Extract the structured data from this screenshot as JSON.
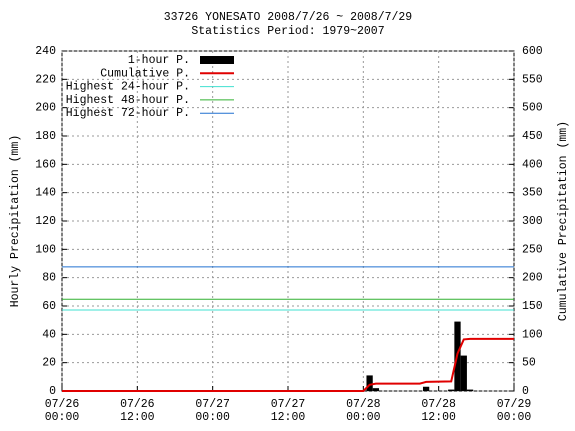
{
  "chart_data": {
    "type": "bar",
    "title": "33726 YONESATO  2008/7/26 ~ 2008/7/29",
    "subtitle": "Statistics Period: 1979~2007",
    "y_label": "Hourly Precipitation (mm)",
    "y2_label": "Cumulative Precipitation (mm)",
    "xlim": [
      0,
      72
    ],
    "xticks": [
      {
        "value": 0,
        "label": "07/26\n00:00"
      },
      {
        "value": 12,
        "label": "07/26\n12:00"
      },
      {
        "value": 24,
        "label": "07/27\n00:00"
      },
      {
        "value": 36,
        "label": "07/27\n12:00"
      },
      {
        "value": 48,
        "label": "07/28\n00:00"
      },
      {
        "value": 60,
        "label": "07/28\n12:00"
      },
      {
        "value": 72,
        "label": "07/29\n00:00"
      }
    ],
    "ylim": [
      0,
      240
    ],
    "yticks": [
      0,
      20,
      40,
      60,
      80,
      100,
      120,
      140,
      160,
      180,
      200,
      220,
      240
    ],
    "y2lim": [
      0,
      600
    ],
    "y2ticks": [
      0,
      50,
      100,
      150,
      200,
      250,
      300,
      350,
      400,
      450,
      500,
      550,
      600
    ],
    "grid": true,
    "legend": "top-right",
    "series": [
      {
        "name": "1-hour P.",
        "type": "bar",
        "color": "#000000",
        "x": [
          49,
          50,
          58,
          62,
          63,
          64,
          65
        ],
        "values": [
          11,
          2,
          3,
          1,
          49,
          25,
          1
        ]
      },
      {
        "name": "Cumulative P.",
        "type": "line",
        "color": "#e00000",
        "axis": "y2",
        "x": [
          0,
          48,
          49,
          50,
          57,
          58,
          62,
          63,
          64,
          65,
          72
        ],
        "values": [
          0,
          0,
          11,
          13,
          13,
          16,
          17,
          66,
          91,
          92,
          92
        ]
      },
      {
        "name": "Highest 24-hour P.",
        "type": "hline",
        "color": "#40e0d0",
        "axis": "y2",
        "value": 143
      },
      {
        "name": "Highest 48-hour P.",
        "type": "hline",
        "color": "#30b030",
        "axis": "y2",
        "value": 162
      },
      {
        "name": "Highest 72-hour P.",
        "type": "hline",
        "color": "#2070d0",
        "axis": "y2",
        "value": 219
      }
    ]
  }
}
